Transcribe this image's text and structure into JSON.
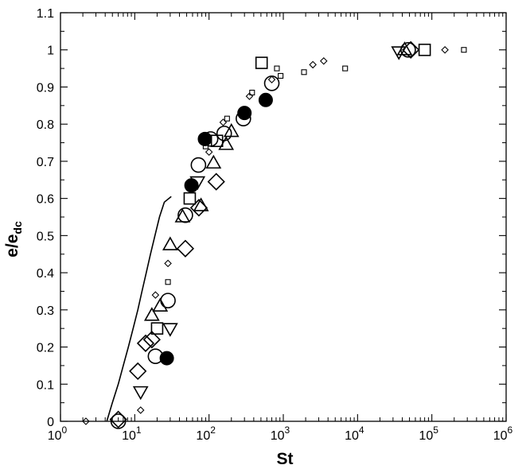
{
  "chart_data": {
    "type": "scatter",
    "title": "",
    "xlabel": "St",
    "ylabel": "e/e",
    "ylabel_subscript": "dc",
    "x_scale": "log",
    "xlim": [
      1,
      1000000
    ],
    "ylim": [
      0,
      1.1
    ],
    "x_ticks": [
      1,
      10,
      100,
      1000,
      10000,
      100000,
      1000000
    ],
    "x_tick_bases": [
      "10",
      "10",
      "10",
      "10",
      "10",
      "10",
      "10"
    ],
    "x_tick_exponents": [
      "0",
      "1",
      "2",
      "3",
      "4",
      "5",
      "6"
    ],
    "y_ticks": [
      0,
      0.1,
      0.2,
      0.3,
      0.4,
      0.5,
      0.6,
      0.7,
      0.8,
      0.9,
      1,
      1.1
    ],
    "y_tick_labels": [
      "0",
      "0.1",
      "0.2",
      "0.3",
      "0.4",
      "0.5",
      "0.6",
      "0.7",
      "0.8",
      "0.9",
      "1",
      "1.1"
    ],
    "grid": false,
    "legend": "none",
    "series": [
      {
        "marker": "curve",
        "points": [
          [
            4.2,
            0
          ],
          [
            5,
            0.05
          ],
          [
            6,
            0.1
          ],
          [
            7,
            0.15
          ],
          [
            8.2,
            0.2
          ],
          [
            9.5,
            0.25
          ],
          [
            11,
            0.3
          ],
          [
            12.5,
            0.35
          ],
          [
            14.3,
            0.4
          ],
          [
            16.3,
            0.45
          ],
          [
            18.7,
            0.5
          ],
          [
            21.5,
            0.55
          ],
          [
            25,
            0.59
          ],
          [
            31,
            0.605
          ]
        ]
      },
      {
        "marker": "circle-open",
        "points": [
          [
            6,
            0
          ],
          [
            19,
            0.175
          ],
          [
            28,
            0.325
          ],
          [
            48,
            0.555
          ],
          [
            72,
            0.69
          ],
          [
            105,
            0.76
          ],
          [
            160,
            0.775
          ],
          [
            290,
            0.815
          ],
          [
            700,
            0.91
          ],
          [
            48000,
            1
          ]
        ]
      },
      {
        "marker": "circle-filled",
        "points": [
          [
            27,
            0.17
          ],
          [
            58,
            0.635
          ],
          [
            88,
            0.76
          ],
          [
            300,
            0.83
          ],
          [
            580,
            0.865
          ]
        ]
      },
      {
        "marker": "square-open",
        "points": [
          [
            20,
            0.25
          ],
          [
            55,
            0.6
          ],
          [
            128,
            0.755
          ],
          [
            510,
            0.965
          ],
          [
            80000,
            1
          ]
        ]
      },
      {
        "marker": "triangle-up",
        "points": [
          [
            17,
            0.285
          ],
          [
            22,
            0.31
          ],
          [
            30,
            0.475
          ],
          [
            44,
            0.55
          ],
          [
            78,
            0.58
          ],
          [
            115,
            0.695
          ],
          [
            170,
            0.745
          ],
          [
            200,
            0.78
          ],
          [
            43000,
            1
          ]
        ]
      },
      {
        "marker": "triangle-down",
        "points": [
          [
            12,
            0.08
          ],
          [
            30,
            0.25
          ],
          [
            70,
            0.645
          ],
          [
            36000,
            0.995
          ]
        ]
      },
      {
        "marker": "diamond-open",
        "points": [
          [
            6,
            0.005
          ],
          [
            11,
            0.135
          ],
          [
            14,
            0.21
          ],
          [
            17,
            0.22
          ],
          [
            48,
            0.465
          ],
          [
            73,
            0.575
          ],
          [
            125,
            0.645
          ],
          [
            52000,
            1
          ]
        ]
      },
      {
        "marker": "square-small",
        "points": [
          [
            28,
            0.375
          ],
          [
            90,
            0.74
          ],
          [
            175,
            0.815
          ],
          [
            380,
            0.885
          ],
          [
            820,
            0.95
          ],
          [
            920,
            0.93
          ],
          [
            1900,
            0.94
          ],
          [
            6800,
            0.95
          ],
          [
            270000,
            1
          ]
        ]
      },
      {
        "marker": "diamond-small",
        "points": [
          [
            2.2,
            0
          ],
          [
            12,
            0.03
          ],
          [
            19,
            0.34
          ],
          [
            28,
            0.425
          ],
          [
            100,
            0.725
          ],
          [
            155,
            0.805
          ],
          [
            350,
            0.875
          ],
          [
            700,
            0.92
          ],
          [
            2500,
            0.96
          ],
          [
            3500,
            0.97
          ],
          [
            150000,
            1
          ]
        ]
      }
    ]
  }
}
